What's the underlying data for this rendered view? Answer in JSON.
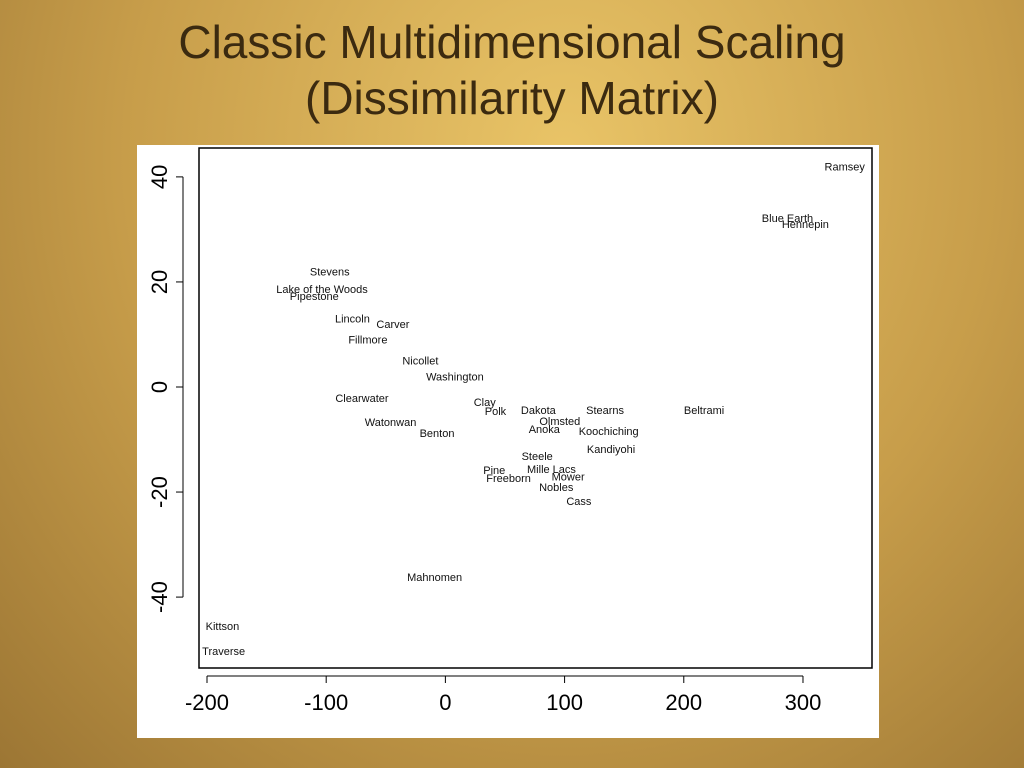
{
  "chart_data": {
    "type": "scatter",
    "title": "Classic Multidimensional Scaling (Dissimilarity Matrix)",
    "point_labels": [
      "Ramsey",
      "Blue Earth",
      "Hennepin",
      "Beltrami",
      "Kittson",
      "Traverse",
      "Mahnomen",
      "Cass",
      "Nobles",
      "Kandiyohi",
      "Koochiching",
      "Steele",
      "Freeborn",
      "Pine",
      "Mille Lacs",
      "Mower",
      "Dakota",
      "Anoka",
      "Olmsted",
      "Stearns",
      "Clearwater",
      "Watonwan",
      "Lake of the Woods",
      "Pipestone",
      "Stevens",
      "Carver",
      "Lincoln",
      "Fillmore",
      "Washington",
      "Nicollet",
      "Clay",
      "Polk",
      "Benton"
    ],
    "x": [
      335,
      287,
      302,
      217,
      -187,
      -186,
      -9,
      112,
      93,
      139,
      137,
      77,
      53,
      41,
      89,
      103,
      78,
      83,
      96,
      134,
      -70,
      -46,
      -103.5,
      -110,
      -97,
      -44,
      -78,
      -65,
      8,
      -21,
      33,
      42,
      -7
    ],
    "y": [
      42,
      32.2,
      31,
      -4.4,
      -45.5,
      -50.3,
      -36.2,
      -21.7,
      -19,
      -11.8,
      -8.4,
      -13.1,
      -17.3,
      -15.8,
      -15.6,
      -17,
      -4.4,
      -8,
      -6.5,
      -4.4,
      -2.1,
      -6.7,
      18.7,
      17.3,
      22,
      12,
      13,
      9,
      2,
      5,
      -2.9,
      -4.6,
      -8.8
    ],
    "color": "#111111",
    "xlim": [
      -206.7,
      357.9
    ],
    "ylim": [
      -53.5,
      45.5
    ],
    "xticks": [
      -200,
      -100,
      0,
      100,
      200,
      300
    ],
    "yticks": [
      -40,
      -20,
      0,
      20,
      40
    ]
  }
}
